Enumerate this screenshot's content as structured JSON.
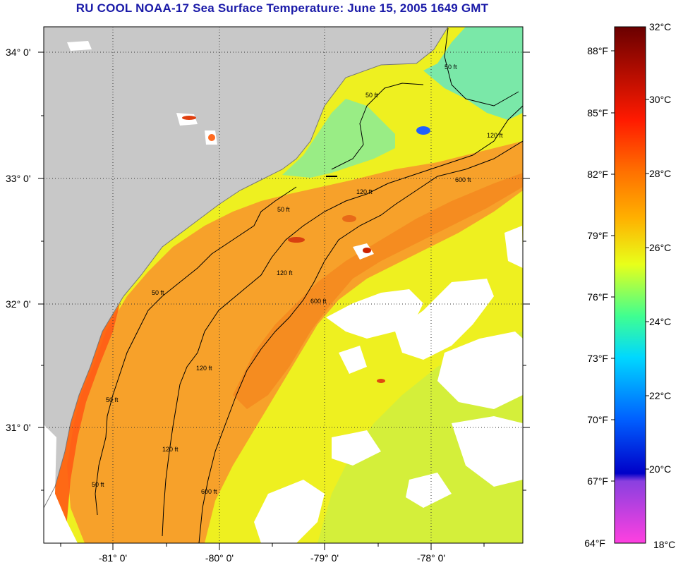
{
  "title": "RU COOL  NOAA-17  Sea Surface Temperature:  June 15, 2005 1649 GMT",
  "lat_labels": [
    "34° 0'",
    "33° 0'",
    "32° 0'",
    "31° 0'"
  ],
  "lon_labels": [
    "-81° 0'",
    "-80° 0'",
    "-79° 0'",
    "-78° 0'"
  ],
  "contour_labels": [
    "50 ft",
    "50 ft",
    "50 ft",
    "50 ft",
    "50 ft",
    "50 ft",
    "120 ft",
    "120 ft",
    "120 ft",
    "120 ft",
    "120 ft",
    "600 ft",
    "600 ft",
    "600 ft"
  ],
  "colorbar": {
    "fahrenheit": [
      "88°F",
      "85°F",
      "82°F",
      "79°F",
      "76°F",
      "73°F",
      "70°F",
      "67°F",
      "64°F"
    ],
    "celsius": [
      "32°C",
      "30°C",
      "28°C",
      "26°C",
      "24°C",
      "22°C",
      "20°C",
      "18°C"
    ],
    "colors": {
      "c32": "#7a0000",
      "c30": "#ff1a00",
      "c28": "#ff8c00",
      "c26": "#e8ff1a",
      "c24": "#00ffd8",
      "c22": "#0090ff",
      "c20": "#0000ff",
      "c18": "#ff40e0"
    }
  },
  "colors": {
    "land": "#c8c8c8",
    "cloud": "#ffffff",
    "warm_offshore": "#f7a12a",
    "nearshore_hot": "#ff4d10",
    "shelf_yellow": "#eef020",
    "cool_north": "#6fe8a0"
  }
}
